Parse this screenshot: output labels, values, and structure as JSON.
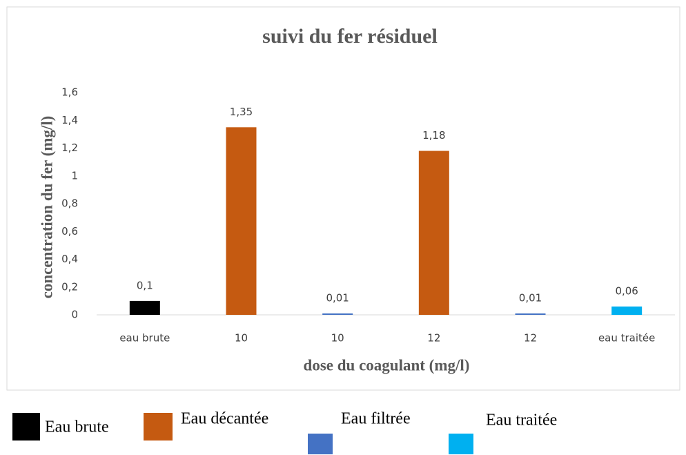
{
  "chart_data": {
    "type": "bar",
    "title": "suivi du fer résiduel",
    "x_label": "dose du coagulant (mg/l)",
    "y_label": "concentration du fer (mg/l)",
    "categories": [
      "eau brute",
      "10",
      "10",
      "12",
      "12",
      "eau traitée"
    ],
    "values": [
      0.1,
      1.35,
      0.01,
      1.18,
      0.01,
      0.06
    ],
    "value_labels": [
      "0,1",
      "1,35",
      "0,01",
      "1,18",
      "0,01",
      "0,06"
    ],
    "colors": [
      "#000000",
      "#c55a11",
      "#4472c4",
      "#c55a11",
      "#4472c4",
      "#00b0f0"
    ],
    "ylim": [
      0,
      1.6
    ],
    "yticks": [
      0,
      {
        "value": 0.2,
        "label": "0,2"
      },
      {
        "value": 0.4,
        "label": "0,4"
      },
      {
        "value": 0.6,
        "label": "0,6"
      },
      {
        "value": 0.8,
        "label": "0,8"
      },
      1,
      {
        "value": 1.2,
        "label": "1,2"
      },
      {
        "value": 1.4,
        "label": "1,4"
      },
      {
        "value": 1.6,
        "label": "1,6"
      }
    ],
    "grid": false,
    "legend": [
      {
        "name": "Eau brute",
        "color": "#000000"
      },
      {
        "name": "Eau décantée",
        "color": "#c55a11"
      },
      {
        "name": "Eau filtrée",
        "color": "#4472c4"
      },
      {
        "name": "Eau traitée",
        "color": "#00b0f0"
      }
    ]
  }
}
